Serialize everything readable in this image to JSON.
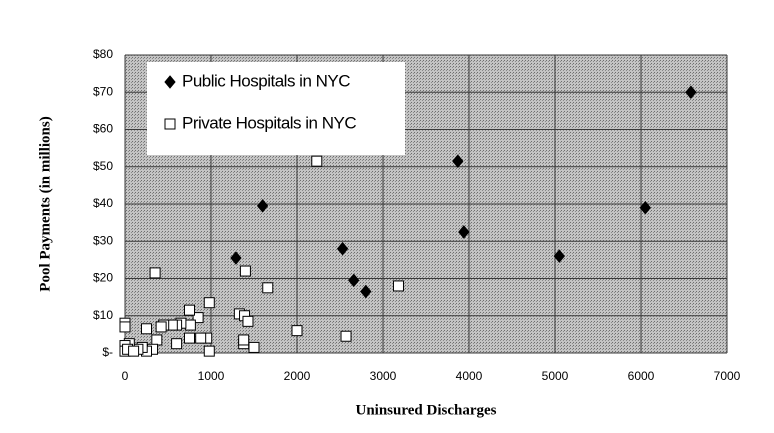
{
  "chart_data": {
    "type": "scatter",
    "xlabel": "Uninsured Discharges",
    "ylabel": "Pool Payments (in millions)",
    "xlim": [
      0,
      7000
    ],
    "xticks": [
      0,
      1000,
      2000,
      3000,
      4000,
      5000,
      6000,
      7000
    ],
    "ylim": [
      0,
      80
    ],
    "yticks": [
      {
        "value": 0,
        "label": "$-"
      },
      {
        "value": 10,
        "label": "$10"
      },
      {
        "value": 20,
        "label": "$20"
      },
      {
        "value": 30,
        "label": "$30"
      },
      {
        "value": 40,
        "label": "$40"
      },
      {
        "value": 50,
        "label": "$50"
      },
      {
        "value": 60,
        "label": "$60"
      },
      {
        "value": 70,
        "label": "$70"
      },
      {
        "value": 80,
        "label": "$80"
      }
    ],
    "grid": true,
    "legend": "upper left",
    "series": [
      {
        "name": "Public Hospitals in NYC",
        "marker": "diamond",
        "color": "#000000",
        "x": [
          1290,
          1600,
          2530,
          2660,
          2800,
          3870,
          3940,
          5050,
          6050,
          6580
        ],
        "values": [
          25.5,
          39.5,
          28,
          19.5,
          16.5,
          51.5,
          32.5,
          26,
          39,
          70
        ]
      },
      {
        "name": "Private Hospitals in NYC",
        "marker": "square",
        "color": "#ffffff",
        "x": [
          350,
          2230,
          1400,
          1660,
          3180,
          2000,
          2570,
          1500,
          1380,
          1330,
          1390,
          1430,
          1380,
          980,
          950,
          980,
          850,
          880,
          750,
          760,
          750,
          650,
          600,
          600,
          550,
          450,
          420,
          370,
          320,
          250,
          250,
          200,
          150,
          50,
          0,
          0,
          0,
          0,
          30,
          100
        ],
        "values": [
          21.5,
          51.5,
          22,
          17.5,
          18,
          6,
          4.5,
          1.5,
          2.5,
          10.5,
          10,
          8.5,
          3.5,
          13.5,
          4,
          0.5,
          9.5,
          4,
          11.5,
          7.5,
          4,
          8,
          7.5,
          2.5,
          7.5,
          7.5,
          7,
          3.5,
          1,
          6.5,
          0.5,
          1.5,
          1,
          2.5,
          8,
          7,
          2,
          0.5,
          1,
          0.5
        ]
      }
    ]
  }
}
